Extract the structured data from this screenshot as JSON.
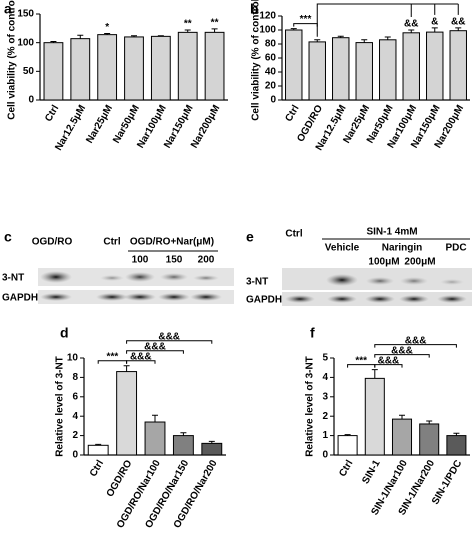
{
  "chart_data": [
    {
      "type": "bar",
      "panel": "a",
      "y_label": "Cell viability (% of control)",
      "categories": [
        "Ctrl",
        "Nar12.5μM",
        "Nar25μM",
        "Nar50μM",
        "Nar100μM",
        "Nar150μM",
        "Nar200μM"
      ],
      "values": [
        100,
        107,
        114,
        110,
        111,
        118,
        118
      ],
      "errors": [
        2,
        6,
        2,
        2,
        1,
        4,
        6
      ],
      "colors": [
        "#d4d4d4",
        "#d4d4d4",
        "#d4d4d4",
        "#d4d4d4",
        "#d4d4d4",
        "#d4d4d4",
        "#d4d4d4"
      ],
      "ylim": [
        0,
        150
      ],
      "yticks": [
        0,
        50,
        100,
        150
      ],
      "annotations": [
        {
          "text": "*",
          "at": "Nar25μM"
        },
        {
          "text": "**",
          "at": "Nar150μM"
        },
        {
          "text": "**",
          "at": "Nar200μM"
        }
      ]
    },
    {
      "type": "bar",
      "panel": "b",
      "y_label": "Cell viability (% of control)",
      "categories": [
        "Ctrl",
        "OGD/RO",
        "Nar12.5μM",
        "Nar25μM",
        "Nar50μM",
        "Nar100μM",
        "Nar150μM",
        "Nar200μM"
      ],
      "values": [
        100,
        83,
        89,
        82,
        86,
        96,
        97,
        99
      ],
      "errors": [
        2,
        3,
        2,
        4,
        4,
        4,
        6,
        4
      ],
      "colors": [
        "#d4d4d4",
        "#d4d4d4",
        "#d4d4d4",
        "#d4d4d4",
        "#d4d4d4",
        "#d4d4d4",
        "#d4d4d4",
        "#d4d4d4"
      ],
      "ylim": [
        0,
        120
      ],
      "yticks": [
        0,
        20,
        40,
        60,
        80,
        100,
        120
      ],
      "annotations": [
        {
          "text": "***",
          "from": "Ctrl",
          "to": "OGD/RO"
        },
        {
          "text": "&&",
          "at": "Nar100μM"
        },
        {
          "text": "&",
          "at": "Nar150μM"
        },
        {
          "text": "&&",
          "at": "Nar200μM"
        }
      ]
    },
    {
      "type": "bar",
      "panel": "d",
      "y_label": "Relative level of 3-NT",
      "categories": [
        "Ctrl",
        "OGD/RO",
        "OGD/RO/Nar100",
        "OGD/RO/Nar150",
        "OGD/RO/Nar200"
      ],
      "values": [
        1.0,
        8.6,
        3.4,
        2.0,
        1.2
      ],
      "errors": [
        0.1,
        0.6,
        0.7,
        0.3,
        0.2
      ],
      "colors": [
        "#ffffff",
        "#d9d9d9",
        "#a6a6a6",
        "#808080",
        "#5a5a5a"
      ],
      "ylim": [
        0,
        10
      ],
      "yticks": [
        0,
        2,
        4,
        6,
        8,
        10
      ],
      "annotations": [
        {
          "text": "***",
          "from": "Ctrl",
          "to": "OGD/RO"
        },
        {
          "text": "&&&",
          "from": "OGD/RO",
          "to": "OGD/RO/Nar100"
        },
        {
          "text": "&&&",
          "from": "OGD/RO",
          "to": "OGD/RO/Nar150"
        },
        {
          "text": "&&&",
          "from": "OGD/RO",
          "to": "OGD/RO/Nar200"
        }
      ]
    },
    {
      "type": "bar",
      "panel": "f",
      "y_label": "Relative level of 3-NT",
      "categories": [
        "Ctrl",
        "SIN-1",
        "SIN-1/Nar100",
        "SIN-1/Nar200",
        "SIN-1/PDC"
      ],
      "values": [
        1.0,
        3.95,
        1.85,
        1.6,
        1.0
      ],
      "errors": [
        0.05,
        0.45,
        0.2,
        0.15,
        0.12
      ],
      "colors": [
        "#ffffff",
        "#d9d9d9",
        "#a6a6a6",
        "#808080",
        "#5a5a5a"
      ],
      "ylim": [
        0,
        5
      ],
      "yticks": [
        0,
        1,
        2,
        3,
        4,
        5
      ],
      "annotations": [
        {
          "text": "***",
          "from": "Ctrl",
          "to": "SIN-1"
        },
        {
          "text": "&&&",
          "from": "SIN-1",
          "to": "SIN-1/Nar100"
        },
        {
          "text": "&&&",
          "from": "SIN-1",
          "to": "SIN-1/Nar200"
        },
        {
          "text": "&&&",
          "from": "SIN-1",
          "to": "SIN-1/PDC"
        }
      ]
    }
  ],
  "blots": [
    {
      "panel": "c",
      "headers": [
        "OGD/RO",
        "Ctrl",
        "OGD/RO+Nar(μM)",
        "100",
        "150",
        "200"
      ],
      "rows": [
        "3-NT",
        "GAPDH"
      ]
    },
    {
      "panel": "e",
      "headers": [
        "Ctrl",
        "SIN-1 4mM",
        "Vehicle",
        "Naringin",
        "PDC",
        "100μM",
        "200μM"
      ],
      "rows": [
        "3-NT",
        "GAPDH"
      ]
    }
  ]
}
